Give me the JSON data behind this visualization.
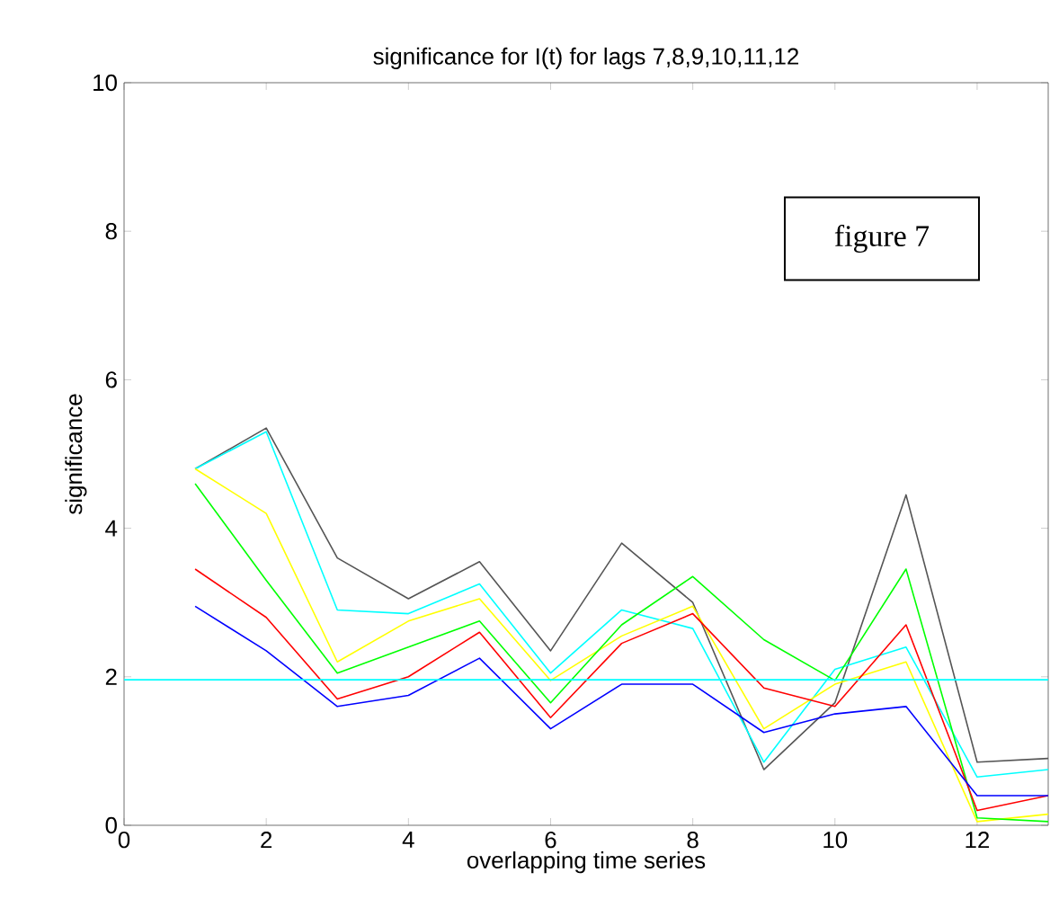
{
  "chart_data": {
    "type": "line",
    "title": "significance for I(t) for lags 7,8,9,10,11,12",
    "xlabel": "overlapping time series",
    "ylabel": "significance",
    "x": [
      1,
      2,
      3,
      4,
      5,
      6,
      7,
      8,
      9,
      10,
      11,
      12,
      13
    ],
    "series": [
      {
        "color": "#555555",
        "values": [
          4.8,
          5.35,
          3.6,
          3.05,
          3.55,
          2.35,
          3.8,
          3.0,
          0.75,
          1.65,
          4.45,
          0.85,
          0.9
        ]
      },
      {
        "color": "#00ffff",
        "values": [
          4.8,
          5.3,
          2.9,
          2.85,
          3.25,
          2.05,
          2.9,
          2.65,
          0.85,
          2.1,
          2.4,
          0.65,
          0.75
        ]
      },
      {
        "color": "#ffff00",
        "values": [
          4.8,
          4.2,
          2.2,
          2.75,
          3.05,
          1.95,
          2.55,
          2.95,
          1.3,
          1.9,
          2.2,
          0.05,
          0.15
        ]
      },
      {
        "color": "#00ff00",
        "values": [
          4.6,
          3.3,
          2.05,
          2.4,
          2.75,
          1.65,
          2.7,
          3.35,
          2.5,
          1.95,
          3.45,
          0.1,
          0.05
        ]
      },
      {
        "color": "#ff0000",
        "values": [
          3.45,
          2.8,
          1.7,
          2.0,
          2.6,
          1.45,
          2.45,
          2.85,
          1.85,
          1.6,
          2.7,
          0.2,
          0.4
        ]
      },
      {
        "color": "#0000ff",
        "values": [
          2.95,
          2.35,
          1.6,
          1.75,
          2.25,
          1.3,
          1.9,
          1.9,
          1.25,
          1.5,
          1.6,
          0.4,
          0.4
        ]
      }
    ],
    "ref_lines": [
      {
        "axis": "y",
        "value": 1.96,
        "color": "#00ffff"
      }
    ],
    "annotations": [
      "figure 7"
    ],
    "xlim": [
      0,
      13
    ],
    "ylim": [
      0,
      10
    ],
    "xticks": [
      0,
      2,
      4,
      6,
      8,
      10,
      12
    ],
    "yticks": [
      0,
      2,
      4,
      6,
      8,
      10
    ],
    "grid": false,
    "marker": "none",
    "line_style": "solid"
  }
}
